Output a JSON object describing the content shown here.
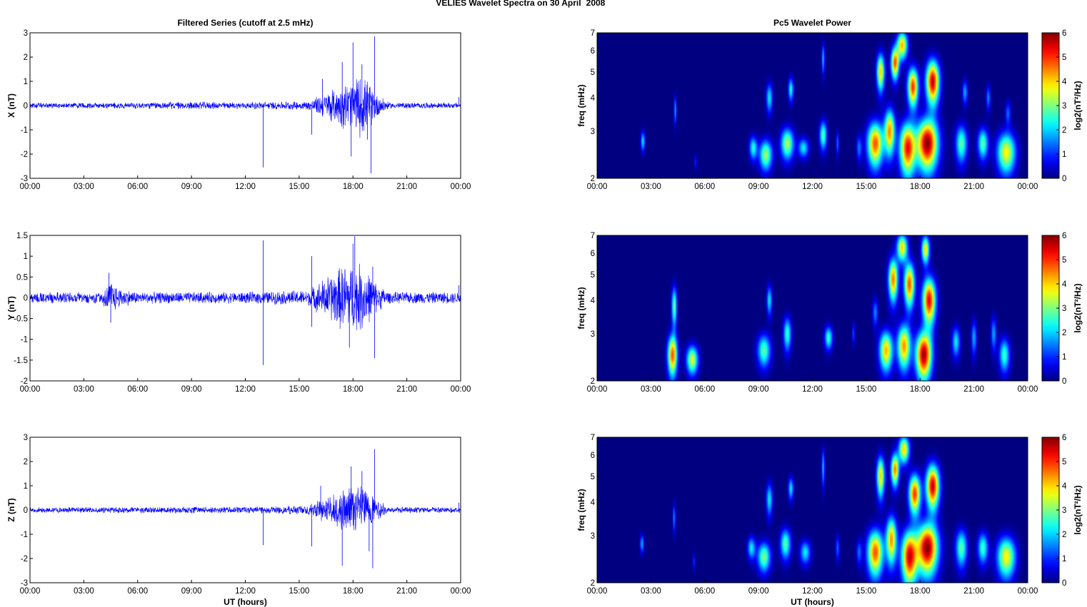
{
  "figure": {
    "title_left": "VELIES Wavelet Spectra on 30 April",
    "title_right": "2008",
    "left_column_title": "Filtered Series (cutoff at 2.5 mHz)",
    "right_column_title": "Pc5 Wavelet Power",
    "colors": {
      "trace": "#0000ff",
      "background_field": "#00008f",
      "axes": "#000000"
    }
  },
  "chart_data": [
    {
      "type": "line",
      "name": "x-series",
      "title": "Filtered Series (cutoff at 2.5 mHz)",
      "ylabel": "X (nT)",
      "xlabel": "",
      "ylim": [
        -3,
        3
      ],
      "yticks": [
        "3",
        "2",
        "1",
        "0",
        "-1",
        "-2",
        "-3"
      ],
      "ytick_values": [
        3,
        2,
        1,
        0,
        -1,
        -2,
        -3
      ],
      "xlim_hours": [
        0,
        24
      ],
      "xticks": [
        "00:00",
        "03:00",
        "06:00",
        "09:00",
        "12:00",
        "15:00",
        "18:00",
        "21:00",
        "00:00"
      ],
      "baseline_amplitude": 0.12,
      "envelope": [
        [
          0,
          0.12
        ],
        [
          4.5,
          0.14
        ],
        [
          9,
          0.17
        ],
        [
          12,
          0.15
        ],
        [
          15.5,
          0.2
        ],
        [
          16.5,
          0.6
        ],
        [
          17.5,
          1.0
        ],
        [
          18.5,
          1.4
        ],
        [
          19.3,
          0.6
        ],
        [
          20,
          0.14
        ],
        [
          24,
          0.12
        ]
      ],
      "spikes": [
        [
          13.0,
          -2.55
        ],
        [
          15.7,
          -1.2
        ],
        [
          16.3,
          1.1
        ],
        [
          17.4,
          1.8
        ],
        [
          17.9,
          -2.1
        ],
        [
          18.0,
          2.6
        ],
        [
          18.5,
          1.7
        ],
        [
          18.8,
          -1.4
        ],
        [
          19.0,
          -2.8
        ],
        [
          19.2,
          2.85
        ],
        [
          23.9,
          0.35
        ]
      ]
    },
    {
      "type": "line",
      "name": "y-series",
      "title": "",
      "ylabel": "Y (nT)",
      "xlabel": "",
      "ylim": [
        -2,
        1.5
      ],
      "yticks": [
        "1.5",
        "1",
        "0.5",
        "0",
        "-0.5",
        "-1",
        "-1.5",
        "-2"
      ],
      "ytick_values": [
        1.5,
        1,
        0.5,
        0,
        -0.5,
        -1,
        -1.5,
        -2
      ],
      "xlim_hours": [
        0,
        24
      ],
      "xticks": [
        "00:00",
        "03:00",
        "06:00",
        "09:00",
        "12:00",
        "15:00",
        "18:00",
        "21:00",
        "00:00"
      ],
      "baseline_amplitude": 0.15,
      "envelope": [
        [
          0,
          0.15
        ],
        [
          4.0,
          0.15
        ],
        [
          4.5,
          0.45
        ],
        [
          5.0,
          0.25
        ],
        [
          6,
          0.15
        ],
        [
          12,
          0.15
        ],
        [
          15.5,
          0.2
        ],
        [
          16.5,
          0.55
        ],
        [
          17.5,
          0.9
        ],
        [
          18.5,
          0.9
        ],
        [
          19.3,
          0.4
        ],
        [
          20,
          0.15
        ],
        [
          24,
          0.15
        ]
      ],
      "spikes": [
        [
          4.4,
          0.6
        ],
        [
          4.5,
          -0.6
        ],
        [
          13.0,
          1.38
        ],
        [
          13.0,
          -1.62
        ],
        [
          15.7,
          1.0
        ],
        [
          15.7,
          -0.7
        ],
        [
          17.8,
          -1.2
        ],
        [
          18.0,
          1.3
        ],
        [
          18.1,
          1.48
        ],
        [
          19.2,
          -1.45
        ],
        [
          19.1,
          0.75
        ],
        [
          23.9,
          0.3
        ]
      ]
    },
    {
      "type": "line",
      "name": "z-series",
      "title": "",
      "ylabel": "Z (nT)",
      "xlabel": "UT (hours)",
      "ylim": [
        -3,
        3
      ],
      "yticks": [
        "3",
        "2",
        "1",
        "0",
        "-1",
        "-2",
        "-3"
      ],
      "ytick_values": [
        3,
        2,
        1,
        0,
        -1,
        -2,
        -3
      ],
      "xlim_hours": [
        0,
        24
      ],
      "xticks": [
        "00:00",
        "03:00",
        "06:00",
        "09:00",
        "12:00",
        "15:00",
        "18:00",
        "21:00",
        "00:00"
      ],
      "baseline_amplitude": 0.12,
      "envelope": [
        [
          0,
          0.12
        ],
        [
          9,
          0.15
        ],
        [
          12,
          0.15
        ],
        [
          15.5,
          0.2
        ],
        [
          16.5,
          0.6
        ],
        [
          17.5,
          1.0
        ],
        [
          18.5,
          1.3
        ],
        [
          19.3,
          0.5
        ],
        [
          20,
          0.14
        ],
        [
          24,
          0.12
        ]
      ],
      "spikes": [
        [
          13.0,
          -1.45
        ],
        [
          15.7,
          -1.5
        ],
        [
          16.2,
          1.0
        ],
        [
          17.4,
          -2.3
        ],
        [
          17.9,
          1.8
        ],
        [
          18.5,
          1.6
        ],
        [
          18.9,
          -1.7
        ],
        [
          19.2,
          2.5
        ],
        [
          19.1,
          -2.4
        ],
        [
          23.9,
          0.3
        ]
      ]
    },
    {
      "type": "heatmap",
      "name": "x-wavelet",
      "title": "Pc5 Wavelet Power",
      "ylabel": "freq (mHz)",
      "xlabel": "",
      "log_y": true,
      "ylim": [
        2,
        7
      ],
      "yticks": [
        "7",
        "6",
        "5",
        "4",
        "3",
        "2"
      ],
      "ytick_values": [
        7,
        6,
        5,
        4,
        3,
        2
      ],
      "xlim_hours": [
        0,
        24
      ],
      "xticks": [
        "00:00",
        "03:00",
        "06:00",
        "09:00",
        "12:00",
        "15:00",
        "18:00",
        "21:00",
        "00:00"
      ],
      "zlim": [
        0,
        6
      ],
      "colorbar_label": "log2(nT²/Hz)",
      "colorbar_ticks": [
        "6",
        "5",
        "4",
        "3",
        "2",
        "1",
        "0"
      ],
      "blobs": [
        [
          2.55,
          2.75,
          0.08,
          0.16,
          2.2
        ],
        [
          4.35,
          3.6,
          0.05,
          0.3,
          1.8
        ],
        [
          5.5,
          2.3,
          0.05,
          0.1,
          1.0
        ],
        [
          8.7,
          2.6,
          0.15,
          0.18,
          2.4
        ],
        [
          9.4,
          2.45,
          0.25,
          0.22,
          3.2
        ],
        [
          9.6,
          4.0,
          0.12,
          0.35,
          2.2
        ],
        [
          10.6,
          2.7,
          0.25,
          0.25,
          3.3
        ],
        [
          10.8,
          4.3,
          0.1,
          0.3,
          2.4
        ],
        [
          11.5,
          2.6,
          0.2,
          0.15,
          2.2
        ],
        [
          12.6,
          2.9,
          0.14,
          0.25,
          2.8
        ],
        [
          12.6,
          5.6,
          0.06,
          0.5,
          2.0
        ],
        [
          13.4,
          2.7,
          0.06,
          0.2,
          1.4
        ],
        [
          14.6,
          2.6,
          0.1,
          0.2,
          1.5
        ],
        [
          15.5,
          2.7,
          0.3,
          0.35,
          4.8
        ],
        [
          15.8,
          5.0,
          0.15,
          0.55,
          4.0
        ],
        [
          16.3,
          3.0,
          0.2,
          0.4,
          4.4
        ],
        [
          16.6,
          5.4,
          0.15,
          0.5,
          4.8
        ],
        [
          17.3,
          2.6,
          0.3,
          0.4,
          5.2
        ],
        [
          17.6,
          4.4,
          0.2,
          0.5,
          5.0
        ],
        [
          18.4,
          2.7,
          0.4,
          0.4,
          6.0
        ],
        [
          18.7,
          4.6,
          0.25,
          0.6,
          5.6
        ],
        [
          17.0,
          6.3,
          0.2,
          0.5,
          4.2
        ],
        [
          20.3,
          2.7,
          0.22,
          0.3,
          2.8
        ],
        [
          20.5,
          4.2,
          0.1,
          0.3,
          1.8
        ],
        [
          21.5,
          2.7,
          0.2,
          0.25,
          2.8
        ],
        [
          21.8,
          4.0,
          0.08,
          0.3,
          1.6
        ],
        [
          22.8,
          2.5,
          0.35,
          0.3,
          3.8
        ],
        [
          22.9,
          3.5,
          0.1,
          0.25,
          1.4
        ]
      ]
    },
    {
      "type": "heatmap",
      "name": "y-wavelet",
      "title": "",
      "ylabel": "freq (mHz)",
      "xlabel": "",
      "log_y": true,
      "ylim": [
        2,
        7
      ],
      "yticks": [
        "7",
        "6",
        "5",
        "4",
        "3",
        "2"
      ],
      "ytick_values": [
        7,
        6,
        5,
        4,
        3,
        2
      ],
      "xlim_hours": [
        0,
        24
      ],
      "xticks": [
        "00:00",
        "03:00",
        "06:00",
        "09:00",
        "12:00",
        "15:00",
        "18:00",
        "21:00",
        "00:00"
      ],
      "zlim": [
        0,
        6
      ],
      "colorbar_label": "log2(nT²/Hz)",
      "colorbar_ticks": [
        "6",
        "5",
        "4",
        "3",
        "2",
        "1",
        "0"
      ],
      "blobs": [
        [
          4.2,
          2.5,
          0.18,
          0.3,
          4.8
        ],
        [
          4.3,
          3.8,
          0.1,
          0.45,
          3.0
        ],
        [
          5.3,
          2.4,
          0.22,
          0.2,
          3.6
        ],
        [
          9.3,
          2.6,
          0.25,
          0.25,
          2.8
        ],
        [
          9.6,
          4.0,
          0.1,
          0.35,
          2.2
        ],
        [
          10.6,
          3.0,
          0.15,
          0.3,
          2.6
        ],
        [
          12.9,
          2.9,
          0.15,
          0.2,
          2.6
        ],
        [
          14.3,
          3.0,
          0.06,
          0.2,
          1.2
        ],
        [
          15.5,
          3.6,
          0.1,
          0.3,
          1.6
        ],
        [
          16.1,
          2.6,
          0.25,
          0.3,
          4.2
        ],
        [
          16.5,
          4.8,
          0.18,
          0.6,
          4.6
        ],
        [
          17.1,
          2.7,
          0.25,
          0.35,
          4.4
        ],
        [
          17.4,
          4.6,
          0.2,
          0.6,
          4.8
        ],
        [
          18.2,
          2.5,
          0.3,
          0.35,
          5.8
        ],
        [
          18.5,
          4.0,
          0.25,
          0.55,
          5.4
        ],
        [
          17.0,
          6.3,
          0.2,
          0.5,
          4.0
        ],
        [
          18.3,
          6.2,
          0.15,
          0.5,
          4.0
        ],
        [
          20.0,
          2.8,
          0.15,
          0.25,
          2.2
        ],
        [
          21.0,
          2.9,
          0.1,
          0.3,
          1.8
        ],
        [
          22.1,
          3.0,
          0.1,
          0.3,
          1.8
        ],
        [
          22.7,
          2.5,
          0.2,
          0.25,
          2.6
        ]
      ]
    },
    {
      "type": "heatmap",
      "name": "z-wavelet",
      "title": "",
      "ylabel": "freq (mHz)",
      "xlabel": "UT (hours)",
      "log_y": true,
      "ylim": [
        2,
        7
      ],
      "yticks": [
        "7",
        "6",
        "5",
        "4",
        "3",
        "2"
      ],
      "ytick_values": [
        7,
        6,
        5,
        4,
        3,
        2
      ],
      "xlim_hours": [
        0,
        24
      ],
      "xticks": [
        "00:00",
        "03:00",
        "06:00",
        "09:00",
        "12:00",
        "15:00",
        "18:00",
        "21:00",
        "00:00"
      ],
      "zlim": [
        0,
        6
      ],
      "colorbar_label": "log2(nT²/Hz)",
      "colorbar_ticks": [
        "6",
        "5",
        "4",
        "3",
        "2",
        "1",
        "0"
      ],
      "blobs": [
        [
          2.5,
          2.8,
          0.07,
          0.15,
          1.9
        ],
        [
          4.3,
          3.5,
          0.05,
          0.3,
          1.7
        ],
        [
          5.4,
          2.4,
          0.05,
          0.12,
          1.0
        ],
        [
          8.6,
          2.7,
          0.15,
          0.18,
          2.2
        ],
        [
          9.3,
          2.5,
          0.25,
          0.22,
          3.0
        ],
        [
          9.6,
          4.1,
          0.12,
          0.4,
          2.2
        ],
        [
          10.5,
          2.8,
          0.2,
          0.25,
          2.8
        ],
        [
          10.8,
          4.5,
          0.1,
          0.3,
          2.2
        ],
        [
          11.6,
          2.6,
          0.2,
          0.18,
          2.2
        ],
        [
          12.6,
          5.4,
          0.06,
          0.6,
          2.0
        ],
        [
          13.4,
          2.7,
          0.08,
          0.2,
          1.4
        ],
        [
          14.6,
          2.6,
          0.1,
          0.2,
          1.4
        ],
        [
          15.5,
          2.6,
          0.3,
          0.35,
          4.8
        ],
        [
          15.8,
          5.0,
          0.15,
          0.6,
          4.0
        ],
        [
          16.4,
          2.9,
          0.2,
          0.4,
          4.4
        ],
        [
          16.6,
          5.3,
          0.15,
          0.5,
          4.6
        ],
        [
          17.4,
          2.5,
          0.3,
          0.4,
          5.4
        ],
        [
          17.7,
          4.3,
          0.22,
          0.5,
          5.0
        ],
        [
          18.4,
          2.7,
          0.4,
          0.4,
          6.0
        ],
        [
          18.7,
          4.6,
          0.25,
          0.6,
          5.6
        ],
        [
          17.1,
          6.3,
          0.2,
          0.5,
          4.0
        ],
        [
          20.3,
          2.7,
          0.22,
          0.3,
          2.8
        ],
        [
          21.5,
          2.7,
          0.2,
          0.25,
          2.6
        ],
        [
          22.8,
          2.5,
          0.35,
          0.3,
          3.8
        ]
      ]
    }
  ]
}
